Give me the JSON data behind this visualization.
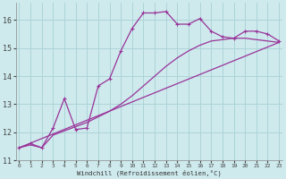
{
  "xlabel": "Windchill (Refroidissement éolien,°C)",
  "background_color": "#ceeaed",
  "grid_color": "#acd4d8",
  "line_color": "#993399",
  "x_ticks": [
    0,
    1,
    2,
    3,
    4,
    5,
    6,
    7,
    8,
    9,
    10,
    11,
    12,
    13,
    14,
    15,
    16,
    17,
    18,
    19,
    20,
    21,
    22,
    23
  ],
  "ylim": [
    11,
    16.6
  ],
  "xlim": [
    -0.3,
    23.3
  ],
  "y_ticks": [
    11,
    12,
    13,
    14,
    15,
    16
  ],
  "curve1_x": [
    0,
    1,
    2,
    3,
    4,
    5,
    6,
    7,
    8,
    9,
    10,
    11,
    12,
    13,
    14,
    15,
    16,
    17,
    18,
    19,
    20,
    21,
    22,
    23
  ],
  "curve1_y": [
    11.45,
    11.6,
    11.45,
    12.15,
    13.2,
    12.1,
    12.15,
    13.65,
    13.9,
    14.9,
    15.7,
    16.25,
    16.25,
    16.3,
    15.85,
    15.85,
    16.05,
    15.6,
    15.4,
    15.35,
    15.6,
    15.6,
    15.5,
    15.25
  ],
  "curve2_x": [
    0,
    1,
    2,
    3,
    4,
    5,
    6,
    7,
    8,
    9,
    10,
    11,
    12,
    13,
    14,
    15,
    16,
    17,
    18,
    19,
    20,
    21,
    22,
    23
  ],
  "curve2_y": [
    11.45,
    11.55,
    11.45,
    11.9,
    12.05,
    12.2,
    12.35,
    12.55,
    12.75,
    13.0,
    13.3,
    13.65,
    14.0,
    14.35,
    14.65,
    14.9,
    15.1,
    15.25,
    15.3,
    15.35,
    15.35,
    15.3,
    15.25,
    15.2
  ],
  "curve3_x": [
    0,
    23
  ],
  "curve3_y": [
    11.45,
    15.2
  ]
}
